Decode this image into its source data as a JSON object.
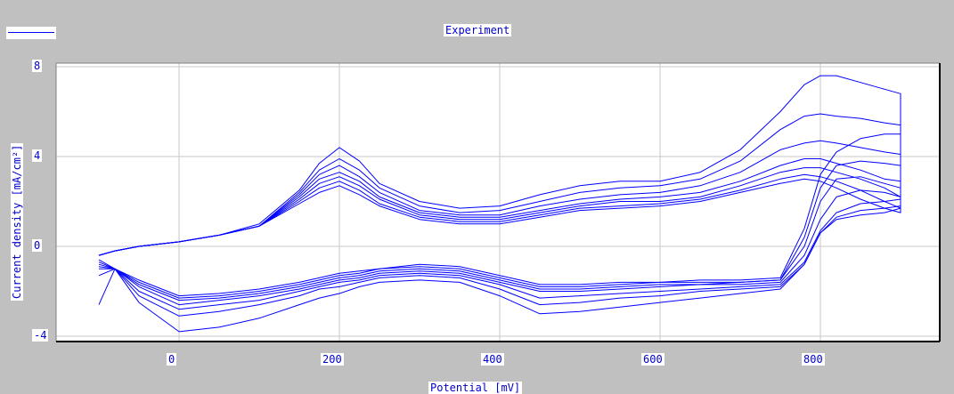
{
  "chart_data": {
    "type": "line",
    "title": "Experiment",
    "xlabel": "Potential [mV]",
    "ylabel": "Current density [mA/cm²]",
    "xlim": [
      -100,
      920
    ],
    "ylim": [
      -4,
      8
    ],
    "xticks": [
      0,
      200,
      400,
      600,
      800
    ],
    "yticks": [
      -4,
      0,
      4,
      8
    ],
    "grid": true,
    "legend": "top-left",
    "colors": {
      "line": "#0000ff",
      "text": "#0000cc",
      "background": "#c0c0c0",
      "plot": "#ffffff",
      "grid": "#c8c8c8"
    },
    "x": [
      -100,
      -80,
      -50,
      0,
      50,
      100,
      150,
      175,
      200,
      225,
      250,
      300,
      350,
      400,
      450,
      500,
      550,
      600,
      650,
      700,
      750,
      780,
      800,
      820,
      850,
      880,
      900
    ],
    "series": [
      {
        "anodic": [
          -0.4,
          -0.2,
          0,
          0.2,
          0.5,
          1.0,
          2.5,
          3.7,
          4.4,
          3.8,
          2.8,
          2.0,
          1.7,
          1.8,
          2.3,
          2.7,
          2.9,
          2.9,
          3.3,
          4.3,
          6.0,
          7.2,
          7.6,
          7.6,
          7.3,
          7.0,
          6.8
        ],
        "cathodic": [
          -2.6,
          -1.0,
          -2.5,
          -3.8,
          -3.6,
          -3.2,
          -2.6,
          -2.3,
          -2.1,
          -1.8,
          -1.6,
          -1.5,
          -1.6,
          -2.2,
          -3.0,
          -2.9,
          -2.7,
          -2.5,
          -2.3,
          -2.1,
          -1.9,
          -0.8,
          0.6,
          1.2,
          1.4,
          1.5,
          1.7
        ]
      },
      {
        "anodic": [
          -0.4,
          -0.2,
          0,
          0.2,
          0.5,
          0.9,
          2.4,
          3.4,
          3.9,
          3.4,
          2.6,
          1.8,
          1.5,
          1.6,
          2.0,
          2.4,
          2.6,
          2.7,
          3.0,
          3.8,
          5.2,
          5.8,
          5.9,
          5.8,
          5.7,
          5.5,
          5.4
        ],
        "cathodic": [
          -1.3,
          -1.0,
          -2.2,
          -3.1,
          -2.9,
          -2.6,
          -2.2,
          -1.9,
          -1.8,
          -1.6,
          -1.4,
          -1.3,
          -1.4,
          -1.9,
          -2.6,
          -2.5,
          -2.3,
          -2.2,
          -2.0,
          -1.9,
          -1.8,
          -0.8,
          0.6,
          1.3,
          1.6,
          1.7,
          1.8
        ]
      },
      {
        "anodic": [
          -0.4,
          -0.2,
          0,
          0.2,
          0.5,
          0.9,
          2.3,
          3.2,
          3.6,
          3.1,
          2.4,
          1.6,
          1.4,
          1.4,
          1.8,
          2.1,
          2.3,
          2.4,
          2.7,
          3.3,
          4.3,
          4.6,
          4.7,
          4.6,
          4.4,
          4.2,
          4.1
        ],
        "cathodic": [
          -1.0,
          -1.0,
          -2.0,
          -2.8,
          -2.6,
          -2.4,
          -2.0,
          -1.8,
          -1.6,
          -1.5,
          -1.3,
          -1.2,
          -1.3,
          -1.7,
          -2.3,
          -2.2,
          -2.1,
          -2.0,
          -1.9,
          -1.8,
          -1.7,
          -0.7,
          0.7,
          1.5,
          1.9,
          2.0,
          2.1
        ]
      },
      {
        "anodic": [
          -0.4,
          -0.2,
          0,
          0.2,
          0.5,
          0.9,
          2.2,
          3.0,
          3.3,
          2.9,
          2.2,
          1.5,
          1.3,
          1.3,
          1.6,
          1.9,
          2.1,
          2.2,
          2.4,
          2.9,
          3.6,
          3.9,
          3.9,
          3.7,
          3.4,
          3.0,
          2.9
        ],
        "cathodic": [
          -0.9,
          -1.0,
          -1.8,
          -2.6,
          -2.4,
          -2.2,
          -1.9,
          -1.7,
          -1.5,
          -1.4,
          -1.2,
          -1.1,
          -1.2,
          -1.6,
          -2.0,
          -2.0,
          -1.9,
          -1.8,
          -1.7,
          -1.7,
          -1.6,
          -0.4,
          1.2,
          2.2,
          2.5,
          2.4,
          2.2
        ]
      },
      {
        "anodic": [
          -0.4,
          -0.2,
          0,
          0.2,
          0.5,
          0.9,
          2.1,
          2.8,
          3.1,
          2.7,
          2.1,
          1.4,
          1.2,
          1.2,
          1.5,
          1.8,
          2.0,
          2.0,
          2.2,
          2.7,
          3.3,
          3.5,
          3.5,
          3.3,
          3.0,
          2.6,
          2.2
        ],
        "cathodic": [
          -0.8,
          -1.0,
          -1.7,
          -2.4,
          -2.3,
          -2.1,
          -1.8,
          -1.6,
          -1.4,
          -1.3,
          -1.1,
          -1.0,
          -1.1,
          -1.5,
          -1.9,
          -1.9,
          -1.8,
          -1.7,
          -1.7,
          -1.6,
          -1.5,
          0.0,
          2.0,
          3.0,
          3.1,
          2.8,
          2.6
        ]
      },
      {
        "anodic": [
          -0.4,
          -0.2,
          0,
          0.2,
          0.5,
          0.9,
          2.0,
          2.6,
          2.9,
          2.5,
          1.9,
          1.3,
          1.1,
          1.1,
          1.4,
          1.7,
          1.8,
          1.9,
          2.1,
          2.5,
          3.0,
          3.2,
          3.1,
          2.9,
          2.5,
          2.0,
          1.7
        ],
        "cathodic": [
          -0.7,
          -1.0,
          -1.6,
          -2.3,
          -2.2,
          -2.0,
          -1.7,
          -1.5,
          -1.3,
          -1.2,
          -1.0,
          -0.9,
          -1.0,
          -1.4,
          -1.8,
          -1.8,
          -1.7,
          -1.6,
          -1.6,
          -1.6,
          -1.5,
          0.4,
          2.6,
          3.6,
          3.8,
          3.7,
          3.6
        ]
      },
      {
        "anodic": [
          -0.4,
          -0.2,
          0,
          0.2,
          0.5,
          0.9,
          1.9,
          2.4,
          2.7,
          2.3,
          1.8,
          1.2,
          1.0,
          1.0,
          1.3,
          1.6,
          1.7,
          1.8,
          2.0,
          2.4,
          2.8,
          3.0,
          2.9,
          2.6,
          2.1,
          1.7,
          1.5
        ],
        "cathodic": [
          -0.6,
          -1.0,
          -1.5,
          -2.2,
          -2.1,
          -1.9,
          -1.6,
          -1.4,
          -1.2,
          -1.1,
          -1.0,
          -0.8,
          -0.9,
          -1.3,
          -1.7,
          -1.7,
          -1.6,
          -1.6,
          -1.5,
          -1.5,
          -1.4,
          0.8,
          3.2,
          4.2,
          4.8,
          5.0,
          5.0
        ]
      }
    ]
  }
}
